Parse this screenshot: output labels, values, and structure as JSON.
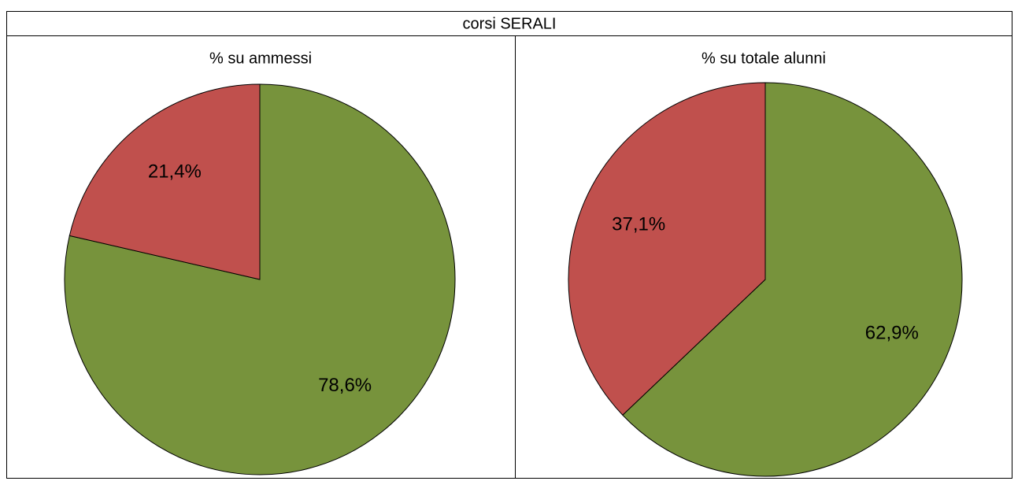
{
  "title": "corsi SERALI",
  "chart_data": [
    {
      "type": "pie",
      "title": "% su ammessi",
      "categories": [
        null,
        null
      ],
      "values": [
        78.6,
        21.4
      ],
      "value_labels": [
        "78,6%",
        "21,4%"
      ],
      "colors": [
        "#77933c",
        "#c0504d"
      ]
    },
    {
      "type": "pie",
      "title": "% su totale alunni",
      "categories": [
        null,
        null
      ],
      "values": [
        62.9,
        37.1
      ],
      "value_labels": [
        "62,9%",
        "37,1%"
      ],
      "colors": [
        "#77933c",
        "#c0504d"
      ]
    }
  ]
}
